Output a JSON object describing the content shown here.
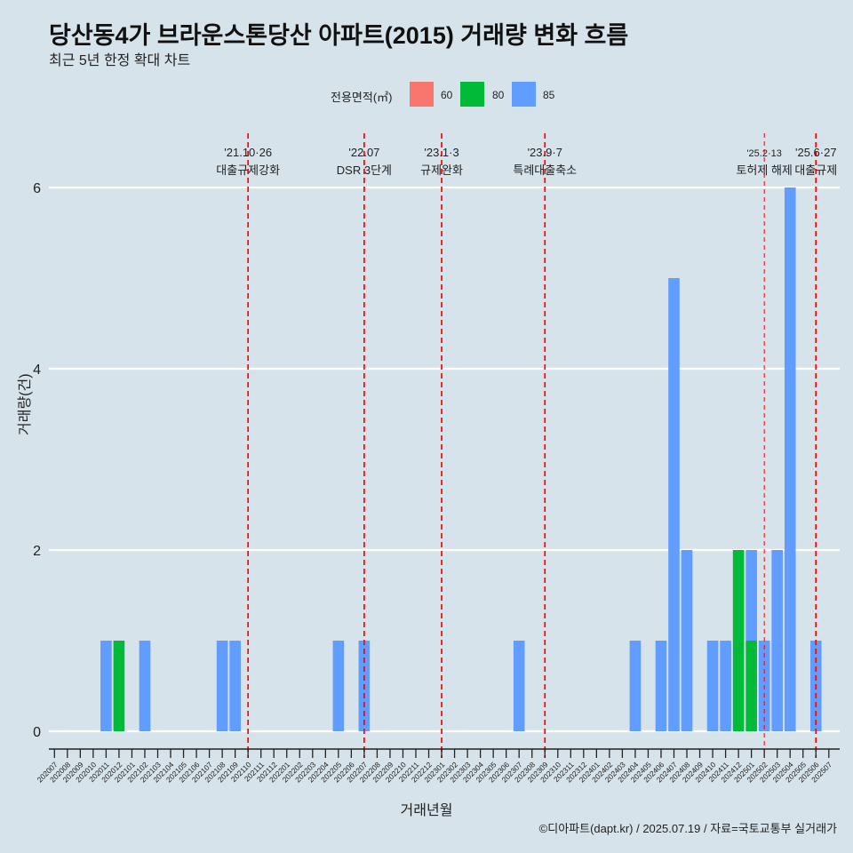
{
  "title": "당산동4가 브라운스톤당산 아파트(2015) 거래량 변화 흐름",
  "subtitle": "최근 5년 한정 확대 차트",
  "caption": "©디아파트(dapt.kr) / 2025.07.19 / 자료=국토교통부 실거래가",
  "colors": {
    "background": "#d7e3ea",
    "60": "#f8766d",
    "80": "#00ba38",
    "85": "#619cff",
    "event_line": "#ff0000",
    "grid": "#ffffff"
  },
  "legend": {
    "title": "전용면적(㎡)",
    "placement": "top",
    "items": [
      {
        "label": "60",
        "color": "#f8766d"
      },
      {
        "label": "80",
        "color": "#00ba38"
      },
      {
        "label": "85",
        "color": "#619cff"
      }
    ]
  },
  "chart_data": {
    "type": "bar",
    "stacked": true,
    "xlabel": "거래년월",
    "ylabel": "거래량(건)",
    "ylim": [
      0,
      6.3
    ],
    "yticks": [
      0,
      2,
      4,
      6
    ],
    "grid": "horizontal",
    "categories": [
      "202007",
      "202008",
      "202009",
      "202010",
      "202011",
      "202012",
      "202101",
      "202102",
      "202103",
      "202104",
      "202105",
      "202106",
      "202107",
      "202108",
      "202109",
      "202110",
      "202111",
      "202112",
      "202201",
      "202202",
      "202203",
      "202204",
      "202205",
      "202206",
      "202207",
      "202208",
      "202209",
      "202210",
      "202211",
      "202212",
      "202301",
      "202302",
      "202303",
      "202304",
      "202305",
      "202306",
      "202307",
      "202308",
      "202309",
      "202310",
      "202311",
      "202312",
      "202401",
      "202402",
      "202403",
      "202404",
      "202405",
      "202406",
      "202407",
      "202408",
      "202409",
      "202410",
      "202411",
      "202412",
      "202501",
      "202502",
      "202503",
      "202504",
      "202505",
      "202506",
      "202507"
    ],
    "bars": [
      {
        "period": "202011",
        "area": "85",
        "value": 1
      },
      {
        "period": "202012",
        "area": "80",
        "value": 1
      },
      {
        "period": "202102",
        "area": "85",
        "value": 1
      },
      {
        "period": "202108",
        "area": "85",
        "value": 1
      },
      {
        "period": "202109",
        "area": "85",
        "value": 1
      },
      {
        "period": "202205",
        "area": "85",
        "value": 1
      },
      {
        "period": "202207",
        "area": "85",
        "value": 1
      },
      {
        "period": "202307",
        "area": "85",
        "value": 1
      },
      {
        "period": "202404",
        "area": "85",
        "value": 1
      },
      {
        "period": "202406",
        "area": "85",
        "value": 1
      },
      {
        "period": "202407",
        "area": "85",
        "value": 5
      },
      {
        "period": "202408",
        "area": "85",
        "value": 2
      },
      {
        "period": "202410",
        "area": "85",
        "value": 1
      },
      {
        "period": "202411",
        "area": "85",
        "value": 1
      },
      {
        "period": "202412",
        "area": "80",
        "value": 2
      },
      {
        "period": "202501",
        "area": "80",
        "value": 1
      },
      {
        "period": "202501",
        "area": "85",
        "value": 1
      },
      {
        "period": "202502",
        "area": "85",
        "value": 1
      },
      {
        "period": "202503",
        "area": "85",
        "value": 2
      },
      {
        "period": "202504",
        "area": "85",
        "value": 6
      },
      {
        "period": "202506",
        "area": "85",
        "value": 1
      }
    ],
    "events": [
      {
        "period": "202110",
        "date": "'21.10·26",
        "label": "대출규제강화",
        "style": "dashed"
      },
      {
        "period": "202207",
        "date": "'22.07",
        "label": "DSR 3단계",
        "style": "dashed"
      },
      {
        "period": "202301",
        "date": "'23.1·3",
        "label": "규제완화",
        "style": "dashed"
      },
      {
        "period": "202309",
        "date": "'23.9·7",
        "label": "특례대출축소",
        "style": "dashed"
      },
      {
        "period": "202502",
        "date": "'25.2·13",
        "label": "토허제 해제",
        "style": "thin"
      },
      {
        "period": "202506",
        "date": "'25.6·27",
        "label": "대출규제",
        "style": "dashed"
      }
    ]
  }
}
